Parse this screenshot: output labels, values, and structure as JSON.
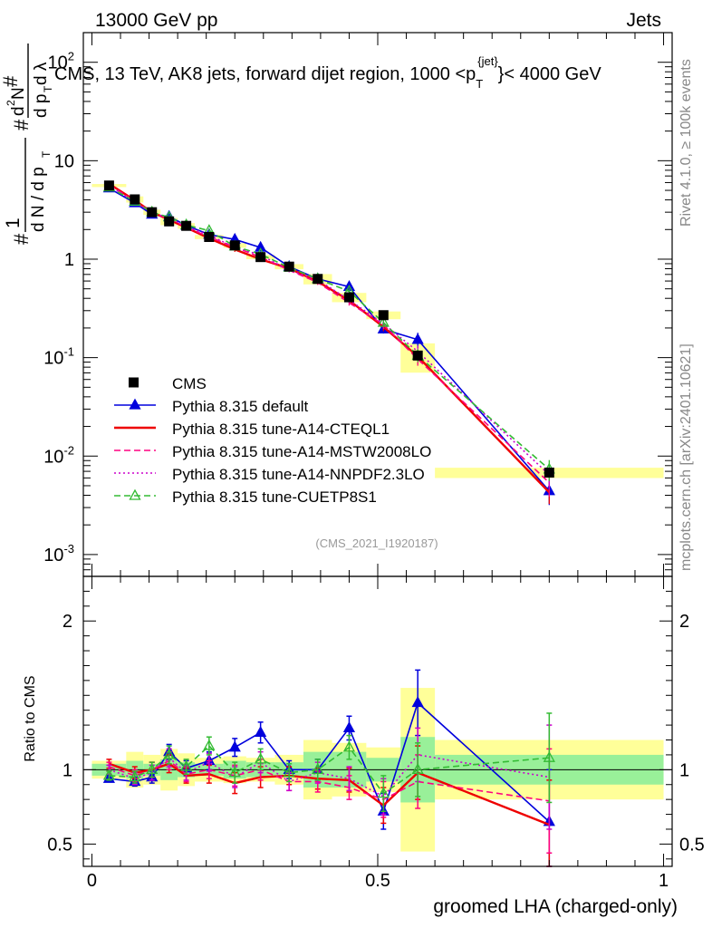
{
  "header": {
    "left": "13000 GeV pp",
    "right": "Jets",
    "rivet": "Rivet 4.1.0, ≥ 100k events",
    "mcplots": "mcplots.cern.ch [arXiv:2401.10621]",
    "analysis": "(CMS_2021_I1920187)"
  },
  "chart_data": {
    "type": "line",
    "title": "CMS, 13 TeV, AK8 jets, forward dijet region, 1000 < p_T^{jet} < 4000 GeV",
    "xlabel": "groomed LHA (charged-only)",
    "ylabel": "1/(dN/dp_T) d²N/(dp_T dλ)",
    "ratio_ylabel": "Ratio to CMS",
    "xlim": [
      -0.015,
      1.015
    ],
    "ylim": [
      0.0006,
      200
    ],
    "ratio_ylim": [
      0.35,
      2.3
    ],
    "yscale": "log",
    "x_ticks": [
      0,
      0.5,
      1
    ],
    "x_tick_labels": [
      "0",
      "0.5",
      "1"
    ],
    "y_ticks": [
      0.001,
      0.01,
      0.1,
      1,
      10,
      100
    ],
    "y_tick_labels": [
      "10^-3",
      "10^-2",
      "10^-1",
      "1",
      "10",
      "10^2"
    ],
    "ratio_y_ticks": [
      0.5,
      1,
      2
    ],
    "ratio_y_tick_labels": [
      "0.5",
      "1",
      "2"
    ],
    "legend_position": "bottom-left",
    "bins": [
      0.0,
      0.06,
      0.09,
      0.12,
      0.15,
      0.18,
      0.23,
      0.27,
      0.32,
      0.37,
      0.42,
      0.48,
      0.54,
      0.6,
      1.0
    ],
    "x": [
      0.03,
      0.075,
      0.105,
      0.135,
      0.165,
      0.205,
      0.25,
      0.295,
      0.345,
      0.395,
      0.45,
      0.51,
      0.57,
      0.8
    ],
    "cms": {
      "name": "CMS",
      "values": [
        5.6,
        4.05,
        3.0,
        2.42,
        2.18,
        1.68,
        1.38,
        1.05,
        0.84,
        0.63,
        0.41,
        0.27,
        0.105,
        0.0068
      ],
      "band_inner": [
        0.04,
        0.06,
        0.04,
        0.07,
        0.05,
        0.04,
        0.06,
        0.05,
        0.05,
        0.12,
        0.12,
        0.08,
        0.22,
        0.1
      ],
      "band_outer": [
        0.06,
        0.12,
        0.1,
        0.14,
        0.11,
        0.08,
        0.09,
        0.08,
        0.1,
        0.2,
        0.18,
        0.15,
        0.55,
        0.2
      ]
    },
    "series": [
      {
        "name": "Pythia 8.315 default",
        "color": "#0000dd",
        "style": "solid",
        "marker": "filled-triangle",
        "ratio": [
          0.94,
          0.92,
          0.95,
          1.12,
          1.01,
          1.06,
          1.15,
          1.25,
          1.0,
          1.0,
          1.28,
          0.72,
          1.45,
          0.65
        ],
        "ratio_err": [
          0.02,
          0.03,
          0.04,
          0.05,
          0.05,
          0.06,
          0.06,
          0.07,
          0.06,
          0.07,
          0.08,
          0.12,
          0.22,
          0.35
        ]
      },
      {
        "name": "Pythia 8.315 tune-A14-CTEQL1",
        "color": "#ee0000",
        "style": "solid",
        "marker": "none",
        "ratio": [
          1.04,
          0.98,
          1.0,
          1.04,
          0.96,
          0.97,
          0.91,
          0.95,
          0.96,
          0.94,
          0.93,
          0.76,
          0.98,
          0.63
        ],
        "ratio_err": [
          0.03,
          0.04,
          0.05,
          0.06,
          0.05,
          0.06,
          0.07,
          0.07,
          0.06,
          0.07,
          0.08,
          0.12,
          0.18,
          0.3
        ]
      },
      {
        "name": "Pythia 8.315 tune-A14-MSTW2008LO",
        "color": "#ff0080",
        "style": "dashed",
        "marker": "none",
        "ratio": [
          1.02,
          0.96,
          1.0,
          1.06,
          0.97,
          1.0,
          0.96,
          1.0,
          0.92,
          0.92,
          0.88,
          0.8,
          0.92,
          0.79
        ],
        "ratio_err": [
          0.03,
          0.04,
          0.05,
          0.06,
          0.05,
          0.06,
          0.07,
          0.07,
          0.06,
          0.07,
          0.08,
          0.12,
          0.18,
          0.35
        ]
      },
      {
        "name": "Pythia 8.315 tune-A14-NNPDF2.3LO",
        "color": "#cc00cc",
        "style": "dotted",
        "marker": "none",
        "ratio": [
          1.0,
          0.94,
          0.98,
          1.08,
          0.98,
          1.05,
          0.95,
          1.05,
          0.92,
          0.98,
          0.94,
          0.82,
          1.1,
          0.95
        ],
        "ratio_err": [
          0.03,
          0.04,
          0.05,
          0.06,
          0.05,
          0.06,
          0.07,
          0.07,
          0.06,
          0.07,
          0.08,
          0.12,
          0.18,
          0.35
        ]
      },
      {
        "name": "Pythia 8.315 tune-CUETP8S1",
        "color": "#33bb33",
        "style": "dashed",
        "marker": "open-triangle",
        "ratio": [
          0.96,
          0.95,
          1.0,
          1.1,
          1.02,
          1.16,
          0.98,
          1.07,
          0.98,
          1.0,
          1.15,
          0.84,
          1.0,
          1.08
        ],
        "ratio_err": [
          0.03,
          0.04,
          0.05,
          0.06,
          0.05,
          0.06,
          0.07,
          0.07,
          0.06,
          0.07,
          0.08,
          0.12,
          0.18,
          0.3
        ]
      }
    ]
  }
}
